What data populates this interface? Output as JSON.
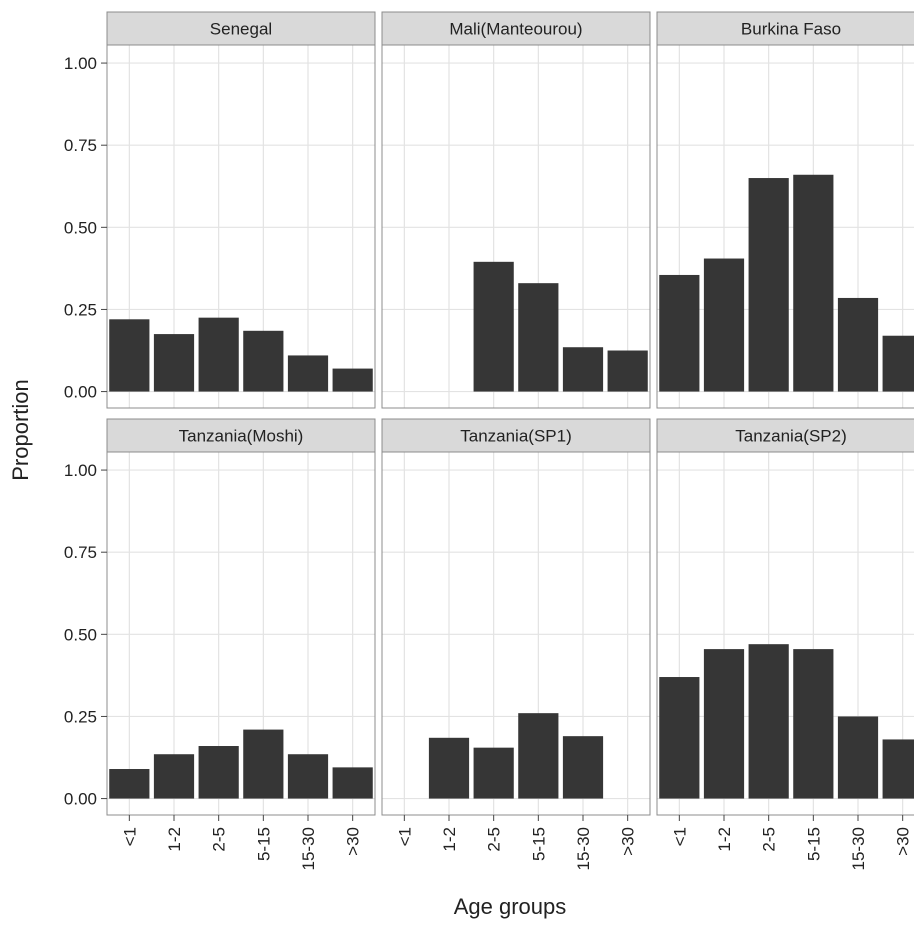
{
  "chart_data": {
    "type": "bar",
    "xlabel": "Age groups",
    "ylabel": "Proportion",
    "categories": [
      "<1",
      "1-2",
      "2-5",
      "5-15",
      "15-30",
      ">30"
    ],
    "ylim": [
      -0.05,
      1.055
    ],
    "yticks": [
      {
        "value": 0,
        "label": "0.00"
      },
      {
        "value": 0.25,
        "label": "0.25"
      },
      {
        "value": 0.5,
        "label": "0.50"
      },
      {
        "value": 0.75,
        "label": "0.75"
      },
      {
        "value": 1,
        "label": "1.00"
      }
    ],
    "grid": true,
    "color": "#363636",
    "facets": [
      {
        "title": "Senegal",
        "values": [
          0.22,
          0.175,
          0.225,
          0.185,
          0.11,
          0.07
        ]
      },
      {
        "title": "Mali(Manteourou)",
        "values": [
          null,
          null,
          0.395,
          0.33,
          0.135,
          0.125
        ]
      },
      {
        "title": "Burkina Faso",
        "values": [
          0.355,
          0.405,
          0.65,
          0.66,
          0.285,
          0.17
        ]
      },
      {
        "title": "Tanzania(Moshi)",
        "values": [
          0.09,
          0.135,
          0.16,
          0.21,
          0.135,
          0.095
        ]
      },
      {
        "title": "Tanzania(SP1)",
        "values": [
          null,
          0.185,
          0.155,
          0.26,
          0.19,
          null
        ]
      },
      {
        "title": "Tanzania(SP2)",
        "values": [
          0.37,
          0.455,
          0.47,
          0.455,
          0.25,
          0.18
        ]
      }
    ]
  }
}
